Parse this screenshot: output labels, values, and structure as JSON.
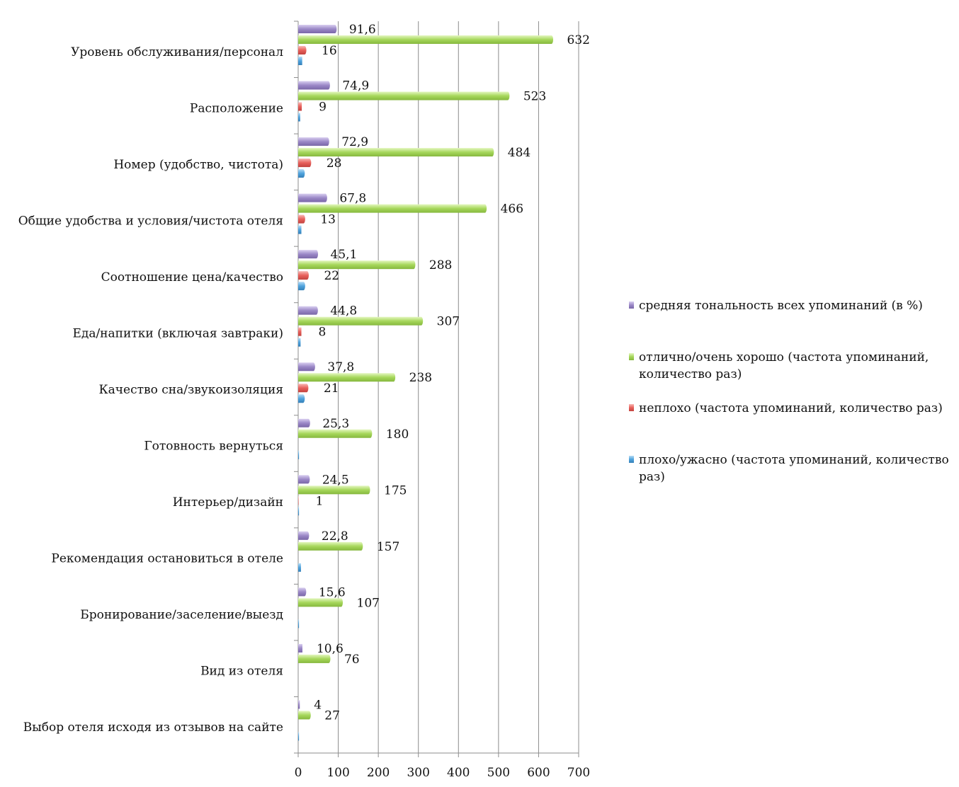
{
  "chart_data": {
    "type": "bar",
    "orientation": "horizontal",
    "title": "",
    "xlabel": "",
    "ylabel": "",
    "xlim": [
      0,
      700
    ],
    "xticks": [
      "0",
      "100",
      "200",
      "300",
      "400",
      "500",
      "600",
      "700"
    ],
    "grid": true,
    "legend_position": "right",
    "categories": [
      "Уровень обслуживания/персонал",
      "Расположение",
      "Номер (удобство, чистота)",
      "Общие удобства и условия/чистота отеля",
      "Соотношение цена/качество",
      "Еда/напитки (включая завтраки)",
      "Качество сна/звукоизоляция",
      "Готовность вернуться",
      "Интерьер/дизайн",
      "Рекомендация остановиться в отеле",
      "Бронирование/заселение/выезд",
      "Вид из отеля",
      "Выбор отеля исходя из отзывов на сайте"
    ],
    "series": [
      {
        "name": "средняя тональность всех упоминаний (в %)",
        "color": "#9b88c7",
        "values": [
          91.6,
          74.9,
          72.9,
          67.8,
          45.1,
          44.8,
          37.8,
          25.3,
          24.5,
          22.8,
          15.6,
          10.6,
          4
        ],
        "labels": [
          "91,6",
          "74,9",
          "72,9",
          "67,8",
          "45,1",
          "44,8",
          "37,8",
          "25,3",
          "24,5",
          "22,8",
          "15,6",
          "10,6",
          "4"
        ]
      },
      {
        "name": "отлично/очень хорошо (частота упоминаний, количество раз)",
        "color": "#a6d75b",
        "values": [
          632,
          523,
          484,
          466,
          288,
          307,
          238,
          180,
          175,
          157,
          107,
          76,
          27
        ],
        "labels": [
          "632",
          "523",
          "484",
          "466",
          "288",
          "307",
          "238",
          "180",
          "175",
          "157",
          "107",
          "76",
          "27"
        ]
      },
      {
        "name": "неплохо (частота упоминаний, количество раз)",
        "color": "#e8605b",
        "values": [
          16,
          9,
          28,
          13,
          22,
          8,
          21,
          0,
          1,
          0,
          0,
          0,
          0
        ],
        "labels": [
          "16",
          "9",
          "28",
          "13",
          "22",
          "8",
          "21",
          "",
          "1",
          "",
          "",
          "",
          ""
        ]
      },
      {
        "name": "плохо/ужасно (частота упоминаний, количество раз)",
        "color": "#4fa3dd",
        "values": [
          10,
          5,
          12,
          8,
          13,
          6,
          12,
          2,
          2,
          7,
          2,
          0,
          2
        ],
        "labels": [
          "",
          "",
          "",
          "",
          "",
          "",
          "",
          "",
          "",
          "",
          "",
          "",
          ""
        ]
      }
    ]
  }
}
